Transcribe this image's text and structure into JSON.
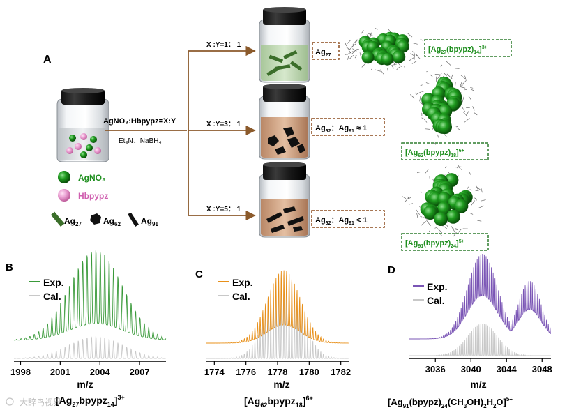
{
  "panel_a": {
    "label": "A",
    "reaction": "AgNO₃:Hbpypz=X:Y",
    "reagents": "Et₃N、NaBH₄",
    "legend": {
      "agno3": "AgNO₃",
      "hbpypz": "Hbpypz",
      "ag27": "Ag27",
      "ag62": "Ag62",
      "ag91": "Ag91"
    },
    "branches": [
      {
        "ratio": "X :Y=1： 1",
        "product": "Ag27",
        "formula": "[Ag27(bpypz)14]3+"
      },
      {
        "ratio": "X :Y=3： 1",
        "product": "Ag62： Ag91 ≈ 1",
        "formula": "[Ag62(bpypz)18]6+"
      },
      {
        "ratio": "X :Y=5： 1",
        "product": "Ag62： Ag91 < 1",
        "formula": "[Ag91(bpypz)24]5+"
      }
    ],
    "colors": {
      "arrow": "#8b5a2b",
      "green": "#1f8f1f",
      "pink": "#e58cc8",
      "brown_box": "#8b4a1c"
    }
  },
  "chart_data": [
    {
      "type": "line",
      "panel": "B",
      "series": [
        {
          "name": "Exp.",
          "color": "#3a9a3a"
        },
        {
          "name": "Cal.",
          "color": "#c8c8c8"
        }
      ],
      "x_ticks": [
        1998,
        2001,
        2004,
        2007
      ],
      "xlim": [
        1997.5,
        2009
      ],
      "center": 2003.7,
      "spacing": 0.333,
      "xlabel": "m/z",
      "formula": "[Ag27bpypz14]3+"
    },
    {
      "type": "line",
      "panel": "C",
      "series": [
        {
          "name": "Exp.",
          "color": "#e8901a"
        },
        {
          "name": "Cal.",
          "color": "#c8c8c8"
        }
      ],
      "x_ticks": [
        1774,
        1776,
        1778,
        1780,
        1782
      ],
      "xlim": [
        1773.5,
        1782.5
      ],
      "center": 1778.4,
      "spacing": 0.1667,
      "xlabel": "m/z",
      "formula": "[Ag62bpypz18]6+"
    },
    {
      "type": "line",
      "panel": "D",
      "series": [
        {
          "name": "Exp.",
          "color": "#7a55b5"
        },
        {
          "name": "Cal.",
          "color": "#c8c8c8"
        }
      ],
      "x_ticks": [
        3036,
        3040,
        3044,
        3048
      ],
      "xlim": [
        3033,
        3049
      ],
      "center": 3041.3,
      "secondary_center": 3046.6,
      "spacing": 0.2,
      "xlabel": "m/z",
      "formula": "[Ag91(bpypz)24(CH3OH)2H2O]5+"
    }
  ],
  "watermark": "大辞鸟视界"
}
